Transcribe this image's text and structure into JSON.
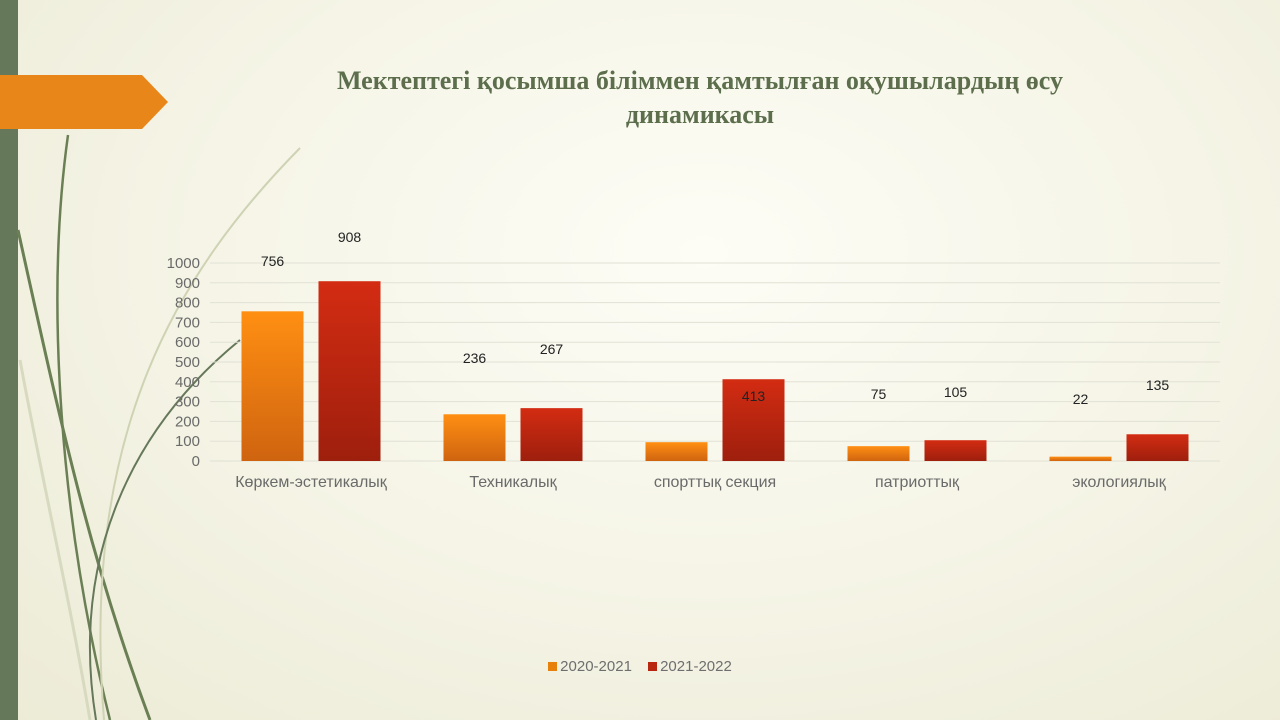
{
  "slide": {
    "title": "Мектептегі қосымша біліммен қамтылған оқушылардың өсу динамикасы",
    "accent_color": "#e8861a",
    "strip_color": "#66785a"
  },
  "chart_data": {
    "type": "bar",
    "title": "Мектептегі қосымша біліммен қамтылған оқушылардың өсу динамикасы",
    "categories": [
      "Көркем-эстетикалық",
      "Техникалық",
      "спорттық секция",
      "патриоттық",
      "экологиялық"
    ],
    "series": [
      {
        "name": "2020-2021",
        "values": [
          756,
          236,
          95,
          75,
          22
        ],
        "labels": [
          "756",
          "236",
          "",
          "75",
          "22"
        ],
        "color": "#e8800c"
      },
      {
        "name": "2021-2022",
        "values": [
          908,
          267,
          413,
          105,
          135
        ],
        "labels": [
          "908",
          "267",
          "413",
          "105",
          "135"
        ],
        "color": "#b8260f"
      }
    ],
    "yticks": [
      0,
      100,
      200,
      300,
      400,
      500,
      600,
      700,
      800,
      900,
      1000
    ],
    "ylim": [
      0,
      1000
    ],
    "xlabel": "",
    "ylabel": "",
    "grid": true,
    "legend": "bottom"
  }
}
